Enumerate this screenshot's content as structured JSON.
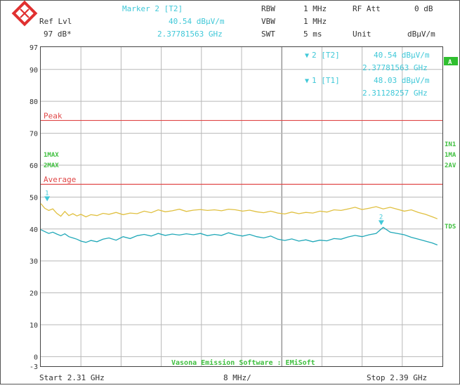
{
  "header": {
    "marker_title": "Marker 2 [T2]",
    "ref_lvl_label": "Ref Lvl",
    "ref_lvl_value": "97 dB*",
    "marker_level": "40.54 dBµV/m",
    "marker_freq": "2.37781563 GHz",
    "rbw_label": "RBW",
    "rbw_value": "1 MHz",
    "vbw_label": "VBW",
    "vbw_value": "1 MHz",
    "swt_label": "SWT",
    "swt_value": "5 ms",
    "rfatt_label": "RF Att",
    "rfatt_value": "0 dB",
    "unit_label": "Unit",
    "unit_value": "dBµV/m"
  },
  "marker_box": {
    "m2_label": "2 [T2]",
    "m2_level": "40.54 dBµV/m",
    "m2_freq": "2.37781563 GHz",
    "m1_label": "1 [T1]",
    "m1_level": "48.03 dBµV/m",
    "m1_freq": "2.31128257 GHz"
  },
  "right_labels": {
    "a": "A",
    "in1": "IN1",
    "1ma": "1MA",
    "2av": "2AV",
    "tdf": "TDS"
  },
  "trace_labels": {
    "max1": "1MAX",
    "max2": "2MAX"
  },
  "footer": {
    "start": "Start 2.31 GHz",
    "span": "8 MHz/",
    "stop": "Stop 2.39 GHz"
  },
  "watermark": "Vasona Emission Software : EMiSoft",
  "colors": {
    "max_trace": "#e0c040",
    "avg_trace": "#20a8b8",
    "limit_line": "#e04848",
    "label_cyan": "#40c8d8",
    "label_green": "#40c040"
  },
  "chart_data": {
    "type": "line",
    "x_unit": "GHz",
    "xlim": [
      2.31,
      2.39
    ],
    "ylim": [
      -3,
      97
    ],
    "y_ticks": [
      97,
      90,
      80,
      70,
      60,
      50,
      40,
      30,
      20,
      10,
      0,
      -3
    ],
    "grid": true,
    "limit_lines": [
      {
        "name": "Peak",
        "value": 74
      },
      {
        "name": "Average",
        "value": 54
      }
    ],
    "series": [
      {
        "name": "1MAX",
        "x": [
          2.31,
          2.3108,
          2.3116,
          2.3124,
          2.3132,
          2.314,
          2.3148,
          2.3156,
          2.3164,
          2.3172,
          2.318,
          2.319,
          2.32,
          2.3212,
          2.3224,
          2.3236,
          2.325,
          2.3264,
          2.3278,
          2.3292,
          2.3306,
          2.332,
          2.3334,
          2.3348,
          2.3362,
          2.3376,
          2.339,
          2.3404,
          2.3418,
          2.3432,
          2.3446,
          2.346,
          2.3474,
          2.3488,
          2.3502,
          2.3516,
          2.353,
          2.3544,
          2.3558,
          2.3572,
          2.3586,
          2.36,
          2.3614,
          2.3628,
          2.3642,
          2.3656,
          2.367,
          2.3684,
          2.3698,
          2.3712,
          2.3726,
          2.374,
          2.3754,
          2.3768,
          2.3782,
          2.3796,
          2.381,
          2.3824,
          2.3838,
          2.3852,
          2.3866,
          2.388,
          2.389
        ],
        "values": [
          48.0,
          46.5,
          45.8,
          46.3,
          44.9,
          44.0,
          45.5,
          44.2,
          44.8,
          44.1,
          44.6,
          43.8,
          44.5,
          44.2,
          44.9,
          44.6,
          45.2,
          44.5,
          45.0,
          44.8,
          45.6,
          45.1,
          46.0,
          45.4,
          45.7,
          46.2,
          45.5,
          45.9,
          46.1,
          45.8,
          46.0,
          45.7,
          46.2,
          46.0,
          45.6,
          45.9,
          45.4,
          45.1,
          45.6,
          45.0,
          44.7,
          45.3,
          44.8,
          45.2,
          45.0,
          45.6,
          45.3,
          46.0,
          45.8,
          46.3,
          46.8,
          46.1,
          46.5,
          47.0,
          46.3,
          46.8,
          46.2,
          45.6,
          46.0,
          45.2,
          44.6,
          43.8,
          43.2
        ]
      },
      {
        "name": "2AV",
        "x": [
          2.31,
          2.3108,
          2.3116,
          2.3124,
          2.3132,
          2.314,
          2.3148,
          2.3156,
          2.3164,
          2.3172,
          2.318,
          2.319,
          2.32,
          2.3212,
          2.3224,
          2.3236,
          2.325,
          2.3264,
          2.3278,
          2.3292,
          2.3306,
          2.332,
          2.3334,
          2.3348,
          2.3362,
          2.3376,
          2.339,
          2.3404,
          2.3418,
          2.3432,
          2.3446,
          2.346,
          2.3474,
          2.3488,
          2.3502,
          2.3516,
          2.353,
          2.3544,
          2.3558,
          2.3572,
          2.3586,
          2.36,
          2.3614,
          2.3628,
          2.3642,
          2.3656,
          2.367,
          2.3684,
          2.3698,
          2.3712,
          2.3726,
          2.374,
          2.3754,
          2.3768,
          2.3782,
          2.3796,
          2.381,
          2.3824,
          2.3838,
          2.3852,
          2.3866,
          2.388,
          2.389
        ],
        "values": [
          39.8,
          39.2,
          38.6,
          39.0,
          38.4,
          37.9,
          38.5,
          37.6,
          37.2,
          36.8,
          36.2,
          35.8,
          36.4,
          36.0,
          36.8,
          37.2,
          36.5,
          37.6,
          37.0,
          37.9,
          38.3,
          37.8,
          38.6,
          38.0,
          38.4,
          38.1,
          38.5,
          38.2,
          38.6,
          37.9,
          38.3,
          38.0,
          38.8,
          38.2,
          37.8,
          38.3,
          37.6,
          37.2,
          37.8,
          36.8,
          36.4,
          36.9,
          36.2,
          36.6,
          36.0,
          36.5,
          36.3,
          37.0,
          36.8,
          37.5,
          38.0,
          37.6,
          38.2,
          38.6,
          40.5,
          39.0,
          38.6,
          38.2,
          37.4,
          36.8,
          36.2,
          35.6,
          35.0
        ]
      }
    ],
    "markers": [
      {
        "label": "1",
        "x": 2.31128257,
        "y": 48.03
      },
      {
        "label": "2",
        "x": 2.37781563,
        "y": 40.54
      }
    ]
  }
}
